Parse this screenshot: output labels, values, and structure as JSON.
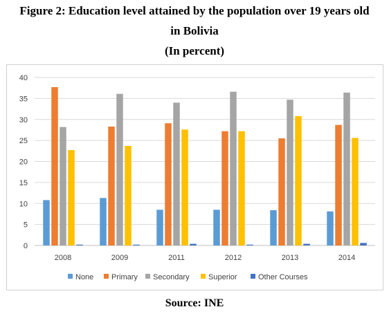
{
  "figure": {
    "title_line1": "Figure 2: Education level attained by the population over 19 years old",
    "title_line2": "in Bolivia",
    "title_line3": "(In percent)",
    "source": "Source: INE"
  },
  "chart_data": {
    "type": "bar",
    "categories": [
      "2008",
      "2009",
      "2011",
      "2012",
      "2013",
      "2014"
    ],
    "ylim": [
      0,
      40
    ],
    "yticks": [
      0,
      5,
      10,
      15,
      20,
      25,
      30,
      35,
      40
    ],
    "grid": true,
    "legend_position": "bottom",
    "series": [
      {
        "name": "None",
        "color": "#5b9bd5",
        "values": [
          10.8,
          11.3,
          8.5,
          8.5,
          8.4,
          8.1
        ]
      },
      {
        "name": "Primary",
        "color": "#ed7d31",
        "values": [
          37.7,
          28.3,
          29.1,
          27.2,
          25.5,
          28.7
        ]
      },
      {
        "name": "Secondary",
        "color": "#a5a5a5",
        "values": [
          28.2,
          36.1,
          34.0,
          36.6,
          34.7,
          36.4
        ]
      },
      {
        "name": "Superior",
        "color": "#ffc000",
        "values": [
          22.7,
          23.7,
          27.6,
          27.2,
          30.8,
          25.6
        ]
      },
      {
        "name": "Other Courses",
        "color": "#4472c4",
        "values": [
          0.2,
          0.2,
          0.4,
          0.2,
          0.4,
          0.6
        ]
      }
    ]
  }
}
